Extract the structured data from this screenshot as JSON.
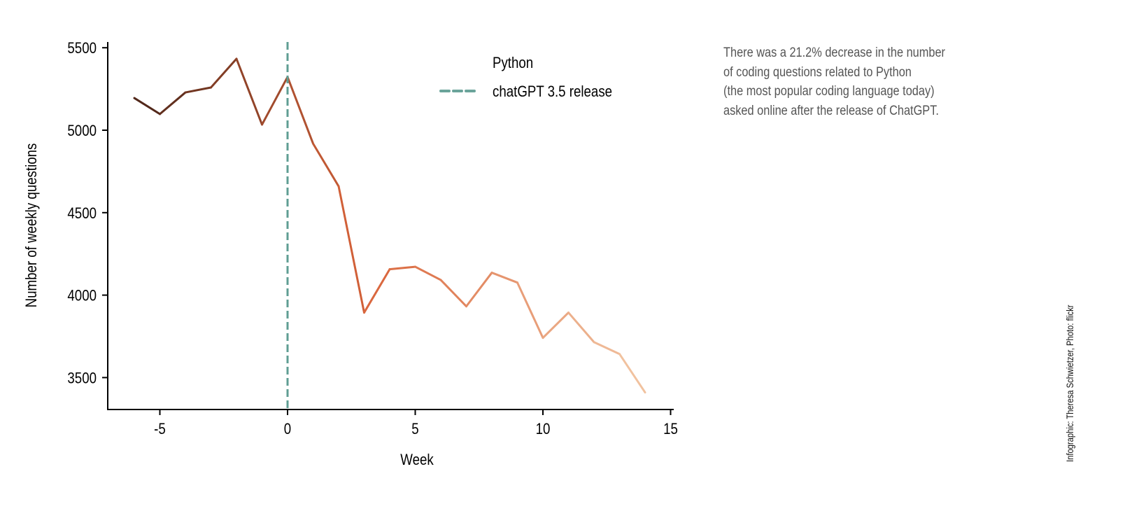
{
  "chart_data": {
    "type": "line",
    "xlabel": "Week",
    "ylabel": "Number of weekly questions",
    "xlim": [
      -7,
      15
    ],
    "ylim": [
      3310,
      5540
    ],
    "xticks": [
      -5,
      0,
      5,
      10,
      15
    ],
    "yticks": [
      3500,
      4000,
      4500,
      5000,
      5500
    ],
    "grid": false,
    "legend_position": "top-right",
    "series": [
      {
        "name": "Python",
        "x": [
          -6,
          -5,
          -4,
          -3,
          -2,
          -1,
          0,
          1,
          2,
          3,
          4,
          5,
          6,
          7,
          8,
          9,
          10,
          11,
          12,
          13,
          14
        ],
        "values": [
          5195,
          5098,
          5229,
          5259,
          5433,
          5034,
          5323,
          4919,
          4660,
          3894,
          4157,
          4172,
          4092,
          3932,
          4136,
          4076,
          3741,
          3894,
          3715,
          3643,
          3410
        ],
        "colors": [
          "#4a2418",
          "#d9643a",
          "#f2c6a4"
        ]
      }
    ],
    "vline": {
      "name": "chatGPT 3.5 release",
      "x": 0,
      "color": "#5f9e93",
      "style": "dashed"
    }
  },
  "annotation": [
    "There was a 21.2% decrease in the number",
    "of coding questions related to Python",
    "(the most popular coding language today)",
    "asked online after the release of ChatGPT."
  ],
  "credit": "Infographic: Theresa Schwietzer, Photo: flickr"
}
